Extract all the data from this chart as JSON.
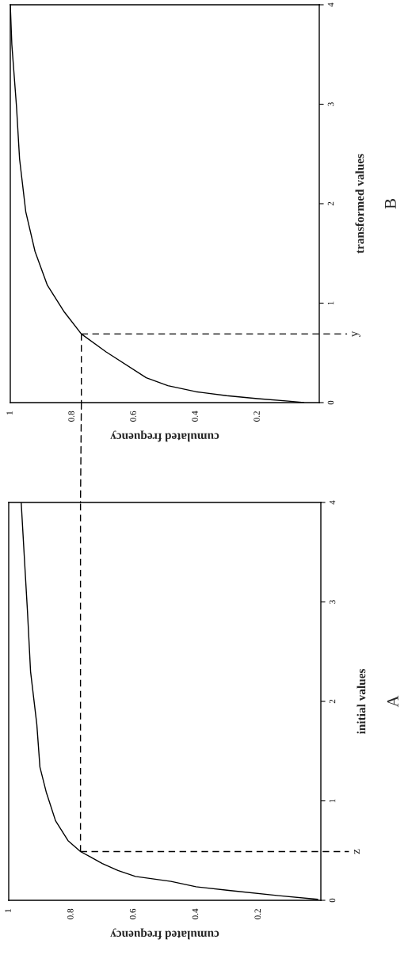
{
  "chart_data": [
    {
      "type": "line",
      "annotations": [
        "B"
      ],
      "xlabel": "cumulated frequency",
      "ylabel": "transformed values",
      "xlim": [
        1,
        0
      ],
      "ylim": [
        0,
        4
      ],
      "xticks": [
        1,
        0.8,
        0.6,
        0.4,
        0.2
      ],
      "yticks": [
        0,
        1,
        2,
        3,
        4
      ],
      "series": [
        {
          "color": "#000000",
          "x": [
            0.05,
            0.1,
            0.2,
            0.3,
            0.4,
            0.49,
            0.56,
            0.69,
            0.77,
            0.825,
            0.88,
            0.92,
            0.95,
            0.97,
            0.98,
            0.995,
            1.0
          ],
          "values": [
            0.0,
            0.015,
            0.04,
            0.07,
            0.11,
            0.17,
            0.25,
            0.51,
            0.69,
            0.91,
            1.18,
            1.52,
            1.92,
            2.45,
            2.98,
            3.6,
            4.0
          ]
        }
      ],
      "ref_lines": [
        {
          "axis": "x",
          "value": 0.77,
          "line_style": "dashed",
          "color": "#000000"
        },
        {
          "axis": "y",
          "value": 0.69,
          "label": "y",
          "line_style": "dashed",
          "color": "#000000"
        }
      ]
    },
    {
      "type": "line",
      "annotations": [
        "A"
      ],
      "xlabel": "cumulated frequency",
      "ylabel": "initial values",
      "xlim": [
        1,
        0
      ],
      "ylim": [
        0,
        4
      ],
      "xticks": [
        1,
        0.8,
        0.6,
        0.4,
        0.2
      ],
      "yticks": [
        0,
        1,
        2,
        3,
        4
      ],
      "series": [
        {
          "color": "#000000",
          "x": [
            0.01,
            0.135,
            0.295,
            0.4,
            0.48,
            0.594,
            0.65,
            0.7,
            0.74,
            0.77,
            0.81,
            0.85,
            0.88,
            0.9,
            0.91,
            0.93,
            0.94,
            0.95,
            0.96
          ],
          "values": [
            0.01,
            0.047,
            0.1,
            0.136,
            0.19,
            0.24,
            0.3,
            0.37,
            0.44,
            0.49,
            0.6,
            0.8,
            1.09,
            1.34,
            1.77,
            2.3,
            2.91,
            3.45,
            4.0
          ]
        }
      ],
      "ref_lines": [
        {
          "axis": "x",
          "value": 0.77,
          "line_style": "dashed",
          "color": "#000000"
        },
        {
          "axis": "y",
          "value": 0.49,
          "label": "z",
          "line_style": "dashed",
          "color": "#000000"
        }
      ]
    }
  ]
}
